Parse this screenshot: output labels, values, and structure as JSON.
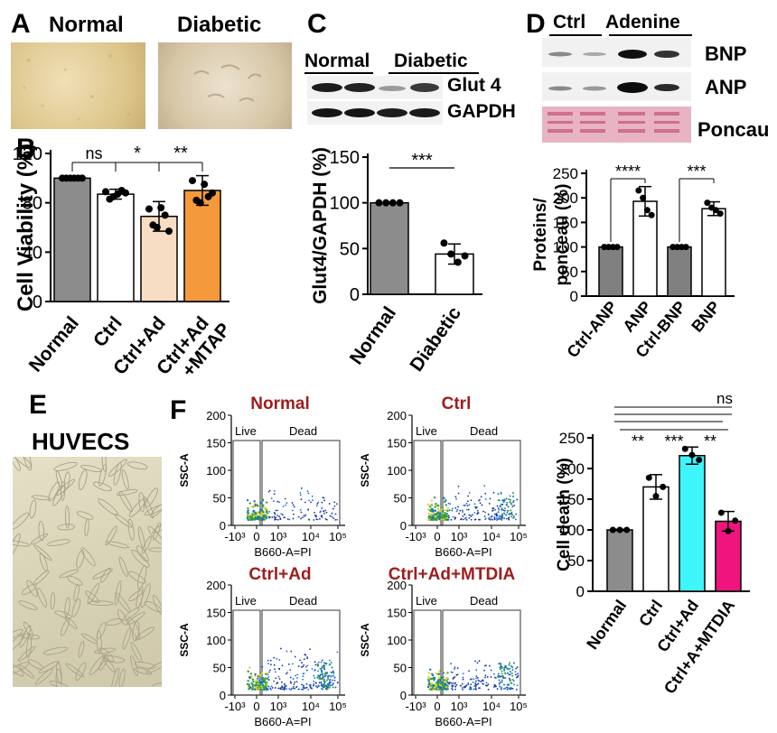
{
  "panels": {
    "A": {
      "label": "A",
      "normal": "Normal",
      "diabetic": "Diabetic"
    },
    "B": {
      "label": "B"
    },
    "C": {
      "label": "C",
      "normal": "Normal",
      "diabetic": "Diabetic",
      "glut4": "Glut 4",
      "gapdh": "GAPDH"
    },
    "D": {
      "label": "D",
      "ctrl": "Ctrl",
      "adenine": "Adenine",
      "bnp": "BNP",
      "anp": "ANP",
      "poncau": "Poncau"
    },
    "E": {
      "label": "E",
      "huvecs": "HUVECS"
    },
    "F": {
      "label": "F"
    }
  },
  "flow": {
    "plots": [
      {
        "title": "Normal",
        "live": "Live",
        "dead": "Dead",
        "xlabel": "B660-A=PI",
        "ylabel": "SSC-A"
      },
      {
        "title": "Ctrl",
        "live": "Live",
        "dead": "Dead",
        "xlabel": "B660-A=PI",
        "ylabel": "SSC-A"
      },
      {
        "title": "Ctrl+Ad",
        "live": "Live",
        "dead": "Dead",
        "xlabel": "B660-A=PI",
        "ylabel": "SSC-A"
      },
      {
        "title": "Ctrl+Ad+MTDIA",
        "live": "Live",
        "dead": "Dead",
        "xlabel": "B660-A=PI",
        "ylabel": "SSC-A"
      }
    ],
    "yticks": [
      "200",
      "150",
      "100",
      "50",
      "0"
    ],
    "xticks": [
      "-10³",
      "0",
      "10³",
      "10⁴",
      "10⁵"
    ],
    "colors": {
      "dense": "#2ea046",
      "mid": "#1b6bd0",
      "sparse": "#1b2fa0",
      "hot": "#e8d020"
    }
  },
  "chart_data": [
    {
      "id": "B",
      "type": "bar",
      "ylabel": "Cell Viability  (%)",
      "ylim": [
        0,
        120
      ],
      "yticks": [
        0,
        40,
        80,
        120
      ],
      "categories": [
        "Normal",
        "Ctrl",
        "Ctrl+Ad",
        "Ctrl+Ad\n+MTAP"
      ],
      "cat_lines": [
        [
          "Normal"
        ],
        [
          "Ctrl"
        ],
        [
          "Ctrl+Ad"
        ],
        [
          "Ctrl+Ad",
          "+MTAP"
        ]
      ],
      "values": [
        100,
        87,
        69,
        90
      ],
      "errors": [
        1,
        4,
        12,
        12
      ],
      "points": [
        [
          100,
          100,
          100,
          100,
          100,
          100
        ],
        [
          89,
          83,
          85,
          87,
          90,
          88
        ],
        [
          75,
          62,
          60,
          76,
          70,
          57
        ],
        [
          98,
          82,
          80,
          95,
          85,
          88
        ]
      ],
      "colors": [
        "#8c8c8c",
        "#ffffff",
        "#f7ddc3",
        "#f59a3c"
      ],
      "sig": [
        {
          "a": 0,
          "b": 1,
          "text": "ns"
        },
        {
          "a": 1,
          "b": 2,
          "text": "*"
        },
        {
          "a": 2,
          "b": 3,
          "text": "**"
        }
      ]
    },
    {
      "id": "C",
      "type": "bar",
      "ylabel": "Glut4/GAPDH (%)",
      "ylim": [
        0,
        150
      ],
      "yticks": [
        0,
        50,
        100,
        150
      ],
      "categories": [
        "Normal",
        "Diabetic"
      ],
      "cat_lines": [
        [
          "Normal"
        ],
        [
          "Diabetic"
        ]
      ],
      "values": [
        100,
        44
      ],
      "errors": [
        1,
        11
      ],
      "points": [
        [
          100,
          100,
          100,
          100
        ],
        [
          56,
          44,
          35,
          42
        ]
      ],
      "colors": [
        "#8c8c8c",
        "#ffffff"
      ],
      "sig": [
        {
          "a": 0,
          "b": 1,
          "text": "***"
        }
      ]
    },
    {
      "id": "D",
      "type": "bar",
      "ylabel": "Proteins/ ponceau (%)",
      "ylim": [
        0,
        250
      ],
      "yticks": [
        0,
        50,
        100,
        150,
        200,
        250
      ],
      "categories": [
        "Ctrl-ANP",
        "ANP",
        "Ctrl-BNP",
        "BNP"
      ],
      "cat_lines": [
        [
          "Ctrl-ANP"
        ],
        [
          "ANP"
        ],
        [
          "Ctrl-BNP"
        ],
        [
          "BNP"
        ]
      ],
      "values": [
        100,
        193,
        100,
        178
      ],
      "errors": [
        1,
        30,
        1,
        14
      ],
      "points": [
        [
          100,
          100,
          100,
          100
        ],
        [
          215,
          200,
          175,
          165
        ],
        [
          100,
          100,
          100,
          100
        ],
        [
          190,
          180,
          175,
          168
        ]
      ],
      "colors": [
        "#808080",
        "#ffffff",
        "#808080",
        "#ffffff"
      ],
      "sig": [
        {
          "a": 0,
          "b": 1,
          "text": "****"
        },
        {
          "a": 2,
          "b": 3,
          "text": "***"
        }
      ]
    },
    {
      "id": "F",
      "type": "bar",
      "ylabel": "Cell death (%)",
      "ylim": [
        0,
        250
      ],
      "yticks": [
        0,
        50,
        100,
        150,
        200,
        250
      ],
      "categories": [
        "Normal",
        "Ctrl",
        "Ctrl+Ad",
        "Ctrl+A+MTDIA"
      ],
      "cat_lines": [
        [
          "Normal"
        ],
        [
          "Ctrl"
        ],
        [
          "Ctrl+Ad"
        ],
        [
          "Ctrl+A+MTDIA"
        ]
      ],
      "values": [
        100,
        170,
        221,
        114
      ],
      "errors": [
        1,
        20,
        14,
        16
      ],
      "points": [
        [
          100,
          100,
          100
        ],
        [
          185,
          155,
          170
        ],
        [
          232,
          222,
          214
        ],
        [
          128,
          98,
          115
        ]
      ],
      "colors": [
        "#8c8c8c",
        "#ffffff",
        "#3df5fa",
        "#f0147e"
      ],
      "sig": [
        {
          "a": 0,
          "b": 1,
          "text": "**"
        },
        {
          "a": 1,
          "b": 2,
          "text": "***"
        },
        {
          "a": 2,
          "b": 3,
          "text": "**"
        },
        {
          "a": 0,
          "b": 3,
          "text": "ns"
        }
      ]
    }
  ]
}
